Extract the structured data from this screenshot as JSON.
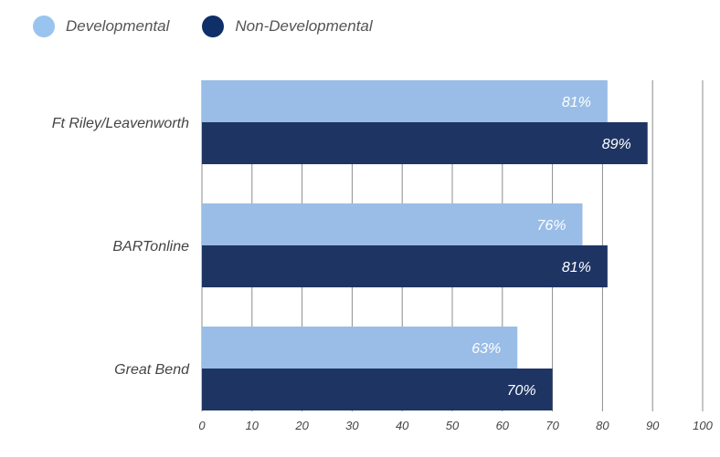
{
  "legend": [
    {
      "label": "Developmental",
      "color": "#99c4ef"
    },
    {
      "label": "Non-Developmental",
      "color": "#0f2f68"
    }
  ],
  "chart_data": {
    "type": "bar",
    "orientation": "horizontal",
    "categories": [
      "Ft Riley/Leavenworth",
      "BARTonline",
      "Great Bend"
    ],
    "series": [
      {
        "name": "Developmental",
        "values": [
          81,
          76,
          63
        ],
        "labels": [
          "81%",
          "76%",
          "63%"
        ],
        "color": "#99bde6"
      },
      {
        "name": "Non-Developmental",
        "values": [
          89,
          81,
          70
        ],
        "labels": [
          "89%",
          "81%",
          "70%"
        ],
        "color": "#1e3564"
      }
    ],
    "xlim": [
      0,
      100
    ],
    "xticks": [
      "0",
      "10",
      "20",
      "30",
      "40",
      "50",
      "60",
      "70",
      "80",
      "90",
      "100"
    ],
    "grid": true,
    "legend_position": "top-left"
  }
}
